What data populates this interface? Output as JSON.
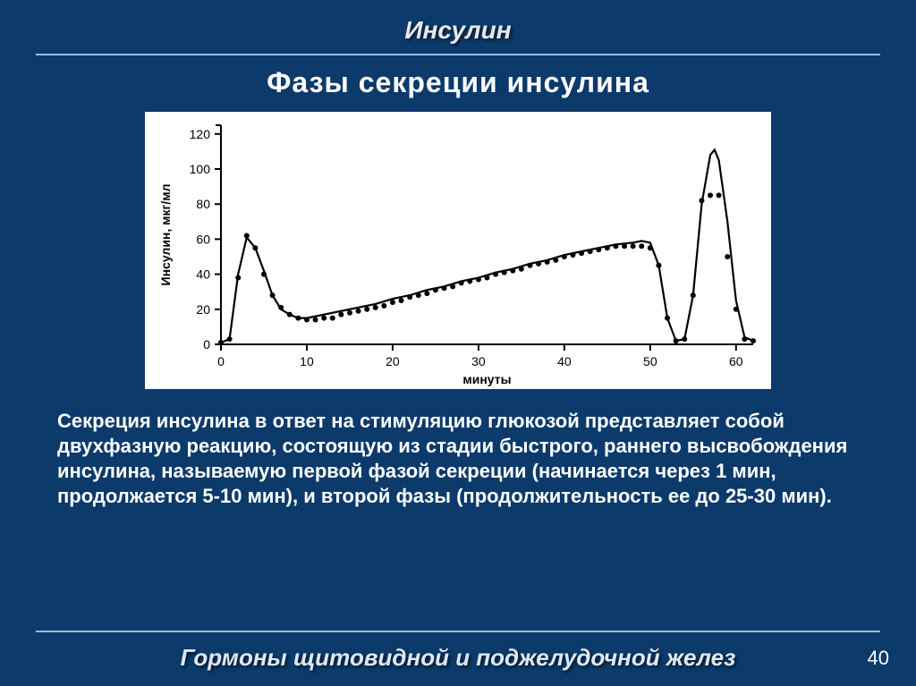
{
  "slide": {
    "header": "Инсулин",
    "subtitle": "Фазы  секреции инсулина",
    "body": "Секреция инсулина в ответ на стимуляцию глюкозой представляет собой двухфазную реакцию, состоящую из стадии быстрого, раннего высвобождения инсулина, называемую первой фазой секреции (начинается через 1 мин, продолжается 5-10 мин), и второй фазы (продолжительность ее до 25-30 мин).",
    "footer": "Гормоны  щитовидной  и поджелудочной  желез",
    "page_number": "40"
  },
  "chart": {
    "type": "line-scatter",
    "ylabel": "Инсулин, мкг/мл",
    "xlabel": "минуты",
    "xlim": [
      0,
      62
    ],
    "ylim": [
      0,
      125
    ],
    "xtick_step": 10,
    "xtick_labels": [
      "0",
      "10",
      "20",
      "30",
      "40",
      "50",
      "60"
    ],
    "ytick_step": 20,
    "ytick_labels": [
      "0",
      "20",
      "40",
      "60",
      "80",
      "100",
      "120"
    ],
    "background_color": "#ffffff",
    "axis_color": "#000000",
    "line_color": "#000000",
    "marker_color": "#000000",
    "label_fontsize": 14,
    "tick_fontsize": 14,
    "line_width": 2.2,
    "marker_radius": 3.0,
    "line_points": [
      [
        0,
        1
      ],
      [
        1,
        3
      ],
      [
        2,
        40
      ],
      [
        3,
        61
      ],
      [
        4,
        55
      ],
      [
        5,
        42
      ],
      [
        6,
        28
      ],
      [
        7,
        20
      ],
      [
        8,
        17
      ],
      [
        9,
        15
      ],
      [
        10,
        15
      ],
      [
        12,
        17
      ],
      [
        14,
        19
      ],
      [
        16,
        21
      ],
      [
        18,
        23
      ],
      [
        20,
        26
      ],
      [
        22,
        28
      ],
      [
        24,
        31
      ],
      [
        26,
        33
      ],
      [
        28,
        36
      ],
      [
        30,
        38
      ],
      [
        32,
        41
      ],
      [
        34,
        43
      ],
      [
        36,
        46
      ],
      [
        38,
        48
      ],
      [
        40,
        51
      ],
      [
        42,
        53
      ],
      [
        44,
        55
      ],
      [
        46,
        57
      ],
      [
        48,
        58
      ],
      [
        49,
        59
      ],
      [
        50,
        58
      ],
      [
        51,
        45
      ],
      [
        52,
        15
      ],
      [
        53,
        2
      ],
      [
        54,
        3
      ],
      [
        55,
        28
      ],
      [
        56,
        80
      ],
      [
        57,
        108
      ],
      [
        57.5,
        111
      ],
      [
        58,
        105
      ],
      [
        59,
        70
      ],
      [
        60,
        25
      ],
      [
        61,
        4
      ],
      [
        62,
        2
      ]
    ],
    "scatter_points": [
      [
        0,
        1
      ],
      [
        1,
        3
      ],
      [
        2,
        38
      ],
      [
        3,
        62
      ],
      [
        4,
        55
      ],
      [
        5,
        40
      ],
      [
        6,
        28
      ],
      [
        7,
        21
      ],
      [
        8,
        17
      ],
      [
        9,
        15
      ],
      [
        10,
        14
      ],
      [
        11,
        14
      ],
      [
        12,
        15
      ],
      [
        13,
        15
      ],
      [
        14,
        17
      ],
      [
        15,
        18
      ],
      [
        16,
        19
      ],
      [
        17,
        20
      ],
      [
        18,
        21
      ],
      [
        19,
        22
      ],
      [
        20,
        24
      ],
      [
        21,
        25
      ],
      [
        22,
        27
      ],
      [
        23,
        28
      ],
      [
        24,
        29
      ],
      [
        25,
        31
      ],
      [
        26,
        32
      ],
      [
        27,
        33
      ],
      [
        28,
        35
      ],
      [
        29,
        36
      ],
      [
        30,
        37
      ],
      [
        31,
        38
      ],
      [
        32,
        40
      ],
      [
        33,
        41
      ],
      [
        34,
        42
      ],
      [
        35,
        43
      ],
      [
        36,
        45
      ],
      [
        37,
        46
      ],
      [
        38,
        47
      ],
      [
        39,
        48
      ],
      [
        40,
        50
      ],
      [
        41,
        51
      ],
      [
        42,
        52
      ],
      [
        43,
        53
      ],
      [
        44,
        54
      ],
      [
        45,
        55
      ],
      [
        46,
        56
      ],
      [
        47,
        56
      ],
      [
        48,
        56
      ],
      [
        49,
        56
      ],
      [
        50,
        55
      ],
      [
        51,
        45
      ],
      [
        52,
        15
      ],
      [
        53,
        2
      ],
      [
        54,
        3
      ],
      [
        55,
        28
      ],
      [
        56,
        82
      ],
      [
        57,
        85
      ],
      [
        58,
        85
      ],
      [
        59,
        50
      ],
      [
        60,
        20
      ],
      [
        61,
        3
      ],
      [
        62,
        2
      ]
    ]
  }
}
